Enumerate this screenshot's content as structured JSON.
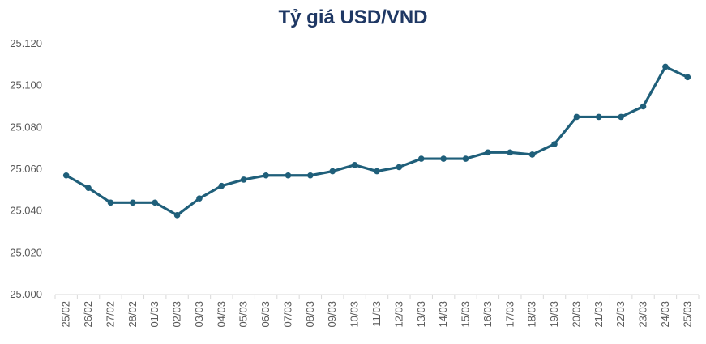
{
  "chart_data": {
    "type": "line",
    "title": "Tỷ giá USD/VND",
    "xlabel": "",
    "ylabel": "",
    "ylim": [
      25000,
      25120
    ],
    "yticks": [
      25000,
      25020,
      25040,
      25060,
      25080,
      25100,
      25120
    ],
    "ytick_labels": [
      "25.000",
      "25.020",
      "25.040",
      "25.060",
      "25.080",
      "25.100",
      "25.120"
    ],
    "categories": [
      "25/02",
      "26/02",
      "27/02",
      "28/02",
      "01/03",
      "02/03",
      "03/03",
      "04/03",
      "05/03",
      "06/03",
      "07/03",
      "08/03",
      "09/03",
      "10/03",
      "11/03",
      "12/03",
      "13/03",
      "14/03",
      "15/03",
      "16/03",
      "17/03",
      "18/03",
      "19/03",
      "20/03",
      "21/03",
      "22/03",
      "23/03",
      "24/03",
      "25/03"
    ],
    "series": [
      {
        "values": [
          25057,
          25051,
          25044,
          25044,
          25044,
          25038,
          25046,
          25052,
          25055,
          25057,
          25057,
          25057,
          25059,
          25062,
          25059,
          25061,
          25065,
          25065,
          25065,
          25068,
          25068,
          25067,
          25072,
          25085,
          25085,
          25085,
          25090,
          25109,
          25104
        ]
      }
    ],
    "grid": false,
    "legend": "none",
    "line_color": "#1f5f7a",
    "title_color": "#1f3864",
    "axis_color": "#d9d9d9"
  }
}
